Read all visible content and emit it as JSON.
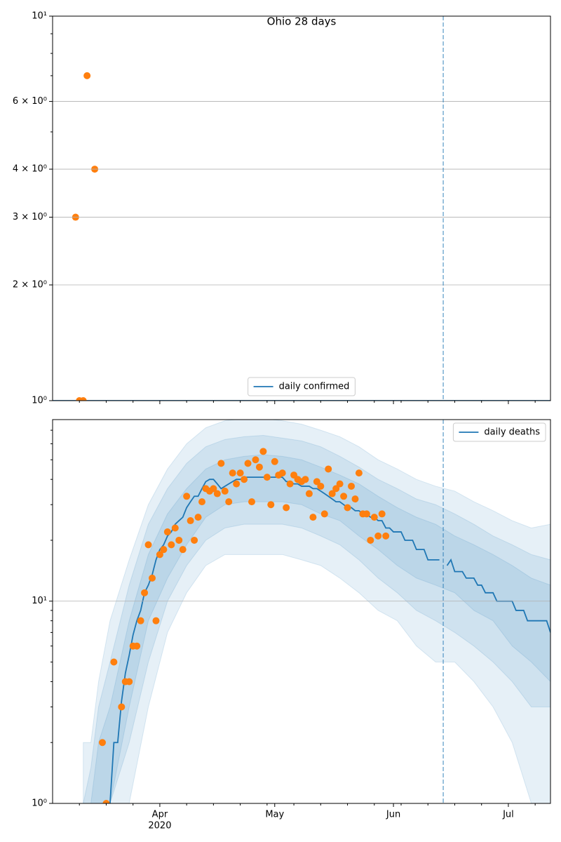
{
  "chart_data": [
    {
      "type": "line",
      "title": "Ohio 28 days",
      "log_y": true,
      "grid": true,
      "legend": "lower center",
      "xlim": [
        0,
        130
      ],
      "xticks": [
        28,
        58,
        89,
        119
      ],
      "xminorticks": [
        7,
        14,
        21,
        35,
        42,
        49,
        56,
        63,
        70,
        77,
        84,
        91,
        98,
        105,
        112,
        126
      ],
      "ylim": [
        1,
        10
      ],
      "yticks": [
        {
          "value": 1,
          "label": "10⁰"
        },
        {
          "value": 2,
          "label": "2 × 10⁰"
        },
        {
          "value": 3,
          "label": "3 × 10⁰"
        },
        {
          "value": 4,
          "label": "4 × 10⁰"
        },
        {
          "value": 6,
          "label": "6 × 10⁰"
        },
        {
          "value": 10,
          "label": "10¹"
        }
      ],
      "yminorticks": [
        5,
        7,
        8,
        9
      ],
      "vline": 102,
      "vline_color": "#1f77b4",
      "series": [
        {
          "name": "daily confirmed",
          "color": "#1f77b4",
          "x": [
            0,
            130
          ],
          "values": [
            1,
            1
          ]
        }
      ],
      "points": {
        "color": "#ff7f0e",
        "x": [
          6,
          7,
          8,
          9,
          11
        ],
        "values": [
          3,
          1,
          1,
          7,
          4
        ]
      }
    },
    {
      "type": "line",
      "log_y": true,
      "grid": true,
      "legend": "upper right",
      "xlim": [
        0,
        130
      ],
      "xticks": [
        {
          "value": 28,
          "label": "Apr"
        },
        {
          "value": 58,
          "label": "May"
        },
        {
          "value": 89,
          "label": "Jun"
        },
        {
          "value": 119,
          "label": "Jul"
        }
      ],
      "x_year": "2020",
      "xminorticks": [
        7,
        14,
        21,
        35,
        42,
        49,
        56,
        63,
        70,
        77,
        84,
        91,
        98,
        105,
        112,
        126
      ],
      "ylim": [
        1,
        79
      ],
      "yticks": [
        {
          "value": 1,
          "label": "10⁰"
        },
        {
          "value": 10,
          "label": "10¹"
        }
      ],
      "yminorticks": [
        2,
        3,
        4,
        5,
        6,
        7,
        8,
        9,
        20,
        30,
        40,
        50,
        60,
        70
      ],
      "vline": 102,
      "vline_color": "#1f77b4",
      "band_color": "#1f77b4",
      "band_alpha": 0.11,
      "band_x": [
        8,
        10,
        12,
        15,
        20,
        25,
        30,
        35,
        40,
        45,
        50,
        55,
        60,
        65,
        70,
        75,
        80,
        85,
        90,
        95,
        100,
        105,
        110,
        115,
        120,
        125,
        130
      ],
      "bands": [
        {
          "upper": [
            2,
            2,
            4,
            8,
            16,
            30,
            45,
            60,
            72,
            78,
            80,
            80,
            78,
            75,
            70,
            65,
            58,
            50,
            45,
            40,
            37,
            35,
            31,
            28,
            25,
            23,
            24
          ],
          "lower": [
            1,
            1,
            1,
            1,
            1,
            3,
            7,
            11,
            15,
            17,
            17,
            17,
            17,
            16,
            15,
            13,
            11,
            9,
            8,
            6,
            5,
            5,
            4,
            3,
            2,
            1,
            1
          ]
        },
        {
          "upper": [
            1,
            1.5,
            3,
            5,
            12,
            24,
            36,
            48,
            58,
            63,
            65,
            66,
            64,
            62,
            58,
            52,
            46,
            40,
            36,
            32,
            30,
            27,
            24,
            21,
            19,
            17,
            16
          ],
          "lower": [
            1,
            1,
            1,
            1,
            2,
            5,
            10,
            15,
            20,
            23,
            24,
            24,
            24,
            23,
            21,
            19,
            16,
            13,
            11,
            9,
            8,
            7,
            6,
            5,
            4,
            3,
            3
          ]
        },
        {
          "upper": [
            1,
            1,
            2,
            3,
            8,
            17,
            27,
            36,
            45,
            50,
            52,
            53,
            52,
            50,
            46,
            42,
            38,
            33,
            29,
            26,
            24,
            21,
            19,
            17,
            15,
            13,
            12
          ],
          "lower": [
            1,
            1,
            1,
            1,
            3,
            8,
            13,
            19,
            26,
            30,
            31,
            31,
            31,
            30,
            27,
            25,
            21,
            18,
            15,
            13,
            12,
            11,
            9,
            8,
            6,
            5,
            4
          ]
        }
      ],
      "series": [
        {
          "name": "daily deaths",
          "color": "#1f77b4",
          "x": [
            15,
            16,
            17,
            18,
            19,
            20,
            21,
            22,
            23,
            24,
            25,
            26,
            27,
            28,
            29,
            30,
            31,
            32,
            33,
            34,
            35,
            36,
            37,
            38,
            39,
            40,
            41,
            42,
            43,
            44,
            45,
            46,
            47,
            48,
            49,
            50,
            51,
            52,
            53,
            54,
            55,
            56,
            57,
            58,
            59,
            60,
            61,
            62,
            63,
            64,
            65,
            66,
            67,
            68,
            69,
            70,
            71,
            72,
            73,
            74,
            75,
            76,
            77,
            78,
            79,
            80,
            81,
            82,
            83,
            84,
            85,
            86,
            87,
            88,
            89,
            90,
            91,
            92,
            93,
            94,
            95,
            96,
            97,
            98,
            99,
            100,
            101,
            102,
            103,
            104,
            105,
            106,
            107,
            108,
            109,
            110,
            111,
            112,
            113,
            114,
            115,
            116,
            117,
            118,
            119,
            120,
            121,
            122,
            123,
            124,
            125,
            126,
            127,
            128,
            129,
            130
          ],
          "values": [
            1,
            2,
            2,
            3.2,
            4.4,
            5.4,
            6.8,
            8,
            9,
            11,
            12,
            13.5,
            16,
            18,
            19,
            21,
            22,
            24,
            25,
            26,
            29,
            31,
            33,
            33,
            36,
            39,
            40,
            40,
            38,
            36,
            37,
            38,
            39,
            40,
            40,
            41,
            41,
            41,
            41,
            41,
            41,
            41,
            41,
            41,
            41,
            41,
            39,
            39,
            38,
            38,
            37,
            37,
            37,
            36,
            36,
            35,
            34,
            33,
            32,
            31,
            31,
            30,
            29,
            29,
            28,
            28,
            27,
            27,
            26,
            26,
            25,
            25,
            23,
            23,
            22,
            22,
            22,
            20,
            20,
            20,
            18,
            18,
            18,
            16,
            16,
            16,
            16,
            null,
            15,
            16,
            14,
            14,
            14,
            13,
            13,
            13,
            12,
            12,
            11,
            11,
            11,
            10,
            10,
            10,
            10,
            10,
            9,
            9,
            9,
            8,
            8,
            8,
            8,
            8,
            8,
            7
          ]
        }
      ],
      "points": {
        "color": "#ff7f0e",
        "x": [
          13,
          14,
          16,
          18,
          19,
          20,
          21,
          22,
          23,
          24,
          25,
          26,
          27,
          28,
          29,
          30,
          31,
          32,
          33,
          34,
          35,
          36,
          37,
          38,
          39,
          40,
          41,
          42,
          43,
          44,
          45,
          46,
          47,
          48,
          49,
          50,
          51,
          52,
          53,
          54,
          55,
          56,
          57,
          58,
          59,
          60,
          61,
          62,
          63,
          64,
          65,
          66,
          67,
          68,
          69,
          70,
          71,
          72,
          73,
          74,
          75,
          76,
          77,
          78,
          79,
          80,
          81,
          82,
          83,
          84,
          85,
          86,
          87
        ],
        "values": [
          2,
          1,
          5,
          3,
          4,
          4,
          6,
          6,
          8,
          11,
          19,
          13,
          8,
          17,
          18,
          22,
          19,
          23,
          20,
          18,
          33,
          25,
          20,
          26,
          31,
          36,
          35,
          36,
          34,
          48,
          35,
          31,
          43,
          38,
          43,
          40,
          48,
          31,
          50,
          46,
          55,
          41,
          30,
          49,
          42,
          43,
          29,
          38,
          42,
          40,
          39,
          40,
          34,
          26,
          39,
          37,
          27,
          45,
          34,
          36,
          38,
          33,
          29,
          37,
          32,
          43,
          27,
          27,
          20,
          26,
          21,
          27,
          21
        ]
      }
    }
  ]
}
